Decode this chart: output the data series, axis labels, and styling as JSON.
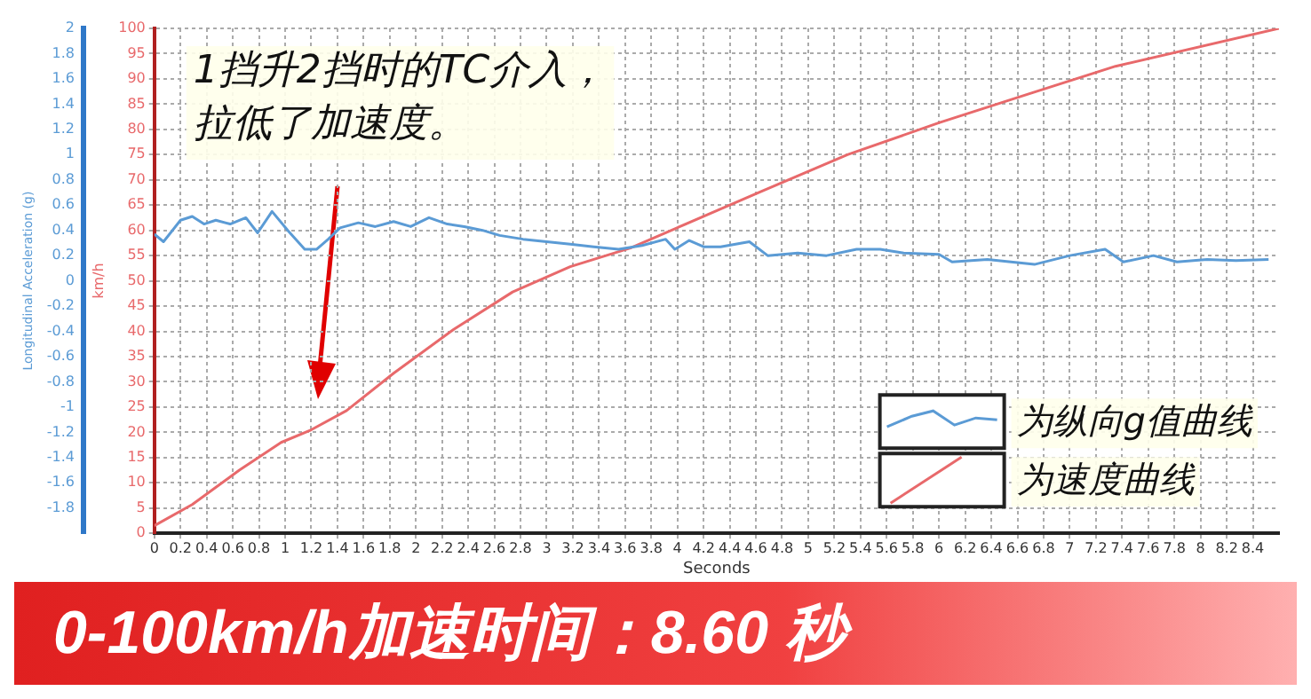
{
  "chart_data": {
    "type": "line",
    "xlabel": "Seconds",
    "ylabel": "km/h",
    "y2label": "Longitudinal Acceleration (g)",
    "xlim": [
      0,
      8.6
    ],
    "xticks": [
      0,
      0.2,
      0.4,
      0.6,
      0.8,
      1,
      1.2,
      1.4,
      1.6,
      1.8,
      2,
      2.2,
      2.4,
      2.6,
      2.8,
      3,
      3.2,
      3.4,
      3.6,
      3.8,
      4,
      4.2,
      4.4,
      4.6,
      4.8,
      5,
      5.2,
      5.4,
      5.6,
      5.8,
      6,
      6.2,
      6.4,
      6.6,
      6.8,
      7,
      7.2,
      7.4,
      7.6,
      7.8,
      8,
      8.2,
      8.4
    ],
    "ylim": [
      0,
      100
    ],
    "yticks": [
      0,
      5,
      10,
      15,
      20,
      25,
      30,
      35,
      40,
      45,
      50,
      55,
      60,
      65,
      70,
      75,
      80,
      85,
      90,
      95,
      100
    ],
    "y2lim": [
      -2,
      2
    ],
    "y2ticks": [
      -1.8,
      -1.6,
      -1.4,
      -1.2,
      -1,
      -0.8,
      -0.6,
      -0.4,
      -0.2,
      0,
      0.2,
      0.4,
      0.6,
      0.8,
      1,
      1.2,
      1.4,
      1.6,
      1.8,
      2
    ],
    "grid": true,
    "legend": "bottom right",
    "marker": "none",
    "line_style": "solid",
    "series": [
      {
        "name": "为纵向g值曲线",
        "color": "#5b9bd5",
        "axis": "y2",
        "x": [
          0,
          0.07,
          0.2,
          0.29,
          0.38,
          0.47,
          0.58,
          0.7,
          0.79,
          0.9,
          1.02,
          1.15,
          1.24,
          1.33,
          1.42,
          1.56,
          1.69,
          1.83,
          1.96,
          2.1,
          2.24,
          2.37,
          2.51,
          2.64,
          2.82,
          3.0,
          3.18,
          3.36,
          3.55,
          3.73,
          3.91,
          3.98,
          4.09,
          4.2,
          4.33,
          4.55,
          4.69,
          4.92,
          5.14,
          5.37,
          5.55,
          5.73,
          6.0,
          6.1,
          6.37,
          6.73,
          7.0,
          7.27,
          7.41,
          7.64,
          7.82,
          8.05,
          8.27,
          8.52
        ],
        "values": [
          0.37,
          0.31,
          0.48,
          0.51,
          0.45,
          0.48,
          0.45,
          0.5,
          0.38,
          0.55,
          0.4,
          0.25,
          0.25,
          0.33,
          0.42,
          0.46,
          0.43,
          0.47,
          0.43,
          0.5,
          0.45,
          0.43,
          0.4,
          0.36,
          0.33,
          0.31,
          0.29,
          0.27,
          0.25,
          0.28,
          0.33,
          0.25,
          0.32,
          0.27,
          0.27,
          0.31,
          0.2,
          0.22,
          0.2,
          0.25,
          0.25,
          0.22,
          0.21,
          0.15,
          0.17,
          0.13,
          0.2,
          0.25,
          0.15,
          0.2,
          0.15,
          0.17,
          0.16,
          0.17
        ]
      },
      {
        "name": "为速度曲线",
        "color": "#e8696b",
        "axis": "y",
        "x": [
          0,
          0.29,
          0.65,
          0.97,
          1.2,
          1.47,
          1.83,
          2.29,
          2.74,
          3.18,
          3.64,
          4.31,
          4.64,
          5.3,
          6.0,
          6.67,
          7.35,
          8.6
        ],
        "values": [
          1.5,
          5.7,
          12.5,
          18,
          20.5,
          24.3,
          31.7,
          40.4,
          47.8,
          52.8,
          56.5,
          64,
          67.7,
          75,
          81.3,
          86.9,
          92.5,
          100
        ]
      }
    ],
    "annotations": [
      "1挡升2挡时的TC介入，拉低了加速度。",
      "0-100km/h加速时间：8.60 秒"
    ]
  }
}
